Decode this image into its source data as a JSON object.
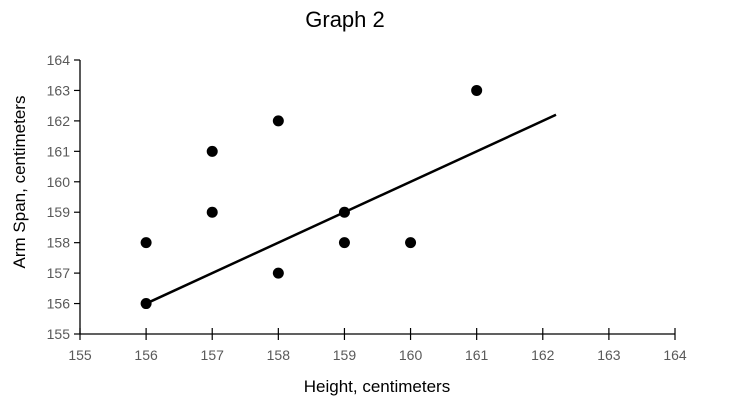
{
  "chart_data": {
    "type": "scatter",
    "title": "Graph 2",
    "xlabel": "Height, centimeters",
    "ylabel": "Arm Span, centimeters",
    "xlim": [
      155,
      164
    ],
    "ylim": [
      155,
      164
    ],
    "x_ticks": [
      "155",
      "156",
      "157",
      "158",
      "159",
      "160",
      "161",
      "162",
      "163",
      "164"
    ],
    "y_ticks": [
      "155",
      "156",
      "157",
      "158",
      "159",
      "160",
      "161",
      "162",
      "163",
      "164"
    ],
    "grid": false,
    "legend": "none",
    "series": [
      {
        "points": [
          {
            "x": 156,
            "y": 158
          },
          {
            "x": 156,
            "y": 156
          },
          {
            "x": 157,
            "y": 161
          },
          {
            "x": 157,
            "y": 159
          },
          {
            "x": 158,
            "y": 162
          },
          {
            "x": 158,
            "y": 157
          },
          {
            "x": 159,
            "y": 159
          },
          {
            "x": 159,
            "y": 158
          },
          {
            "x": 160,
            "y": 158
          },
          {
            "x": 161,
            "y": 163
          }
        ]
      }
    ],
    "trend_line": {
      "start": {
        "x": 156,
        "y": 156
      },
      "end": {
        "x": 162.2,
        "y": 162.2
      }
    },
    "colors": {
      "points": "#000000",
      "trend_line": "#000000",
      "axis": "#000000",
      "tick_labels": "#595959"
    }
  }
}
